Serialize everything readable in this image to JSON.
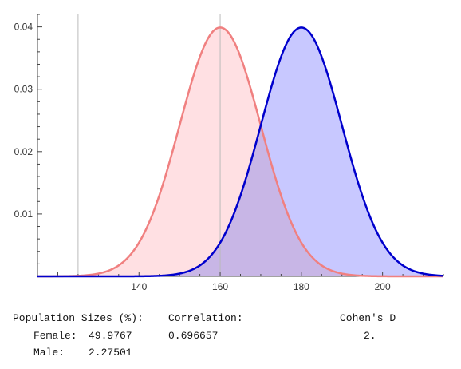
{
  "chart_data": {
    "type": "area",
    "title": "",
    "xlabel": "",
    "ylabel": "",
    "xlim": [
      115,
      215
    ],
    "ylim": [
      0,
      0.042
    ],
    "x_ticks": [
      140,
      160,
      180,
      200
    ],
    "y_ticks": [
      0.01,
      0.02,
      0.03,
      0.04
    ],
    "x_tick_labels": [
      "140",
      "160",
      "180",
      "200"
    ],
    "y_tick_labels": [
      "0.01",
      "0.02",
      "0.03",
      "0.04"
    ],
    "reference_lines_x": [
      125,
      160
    ],
    "grid": false,
    "series": [
      {
        "kind": "normal_pdf",
        "mean": 160,
        "sd": 10,
        "peak": 0.0399,
        "line_color": "#f08080",
        "fill_color": "#ffe0e3"
      },
      {
        "kind": "normal_pdf",
        "mean": 180,
        "sd": 10,
        "peak": 0.0399,
        "line_color": "#0000cc",
        "fill_color": "#c8c8ff"
      }
    ],
    "overlap_fill_color": "#c8b6e6"
  },
  "stats": {
    "population_label": "Population Sizes (%):",
    "female_label": "Female:",
    "female_value": "49.9767",
    "male_label": "Male:",
    "male_value": "2.27501",
    "correlation_label": "Correlation:",
    "correlation_value": "0.696657",
    "cohens_label": "Cohen's D",
    "cohens_value": "2."
  }
}
